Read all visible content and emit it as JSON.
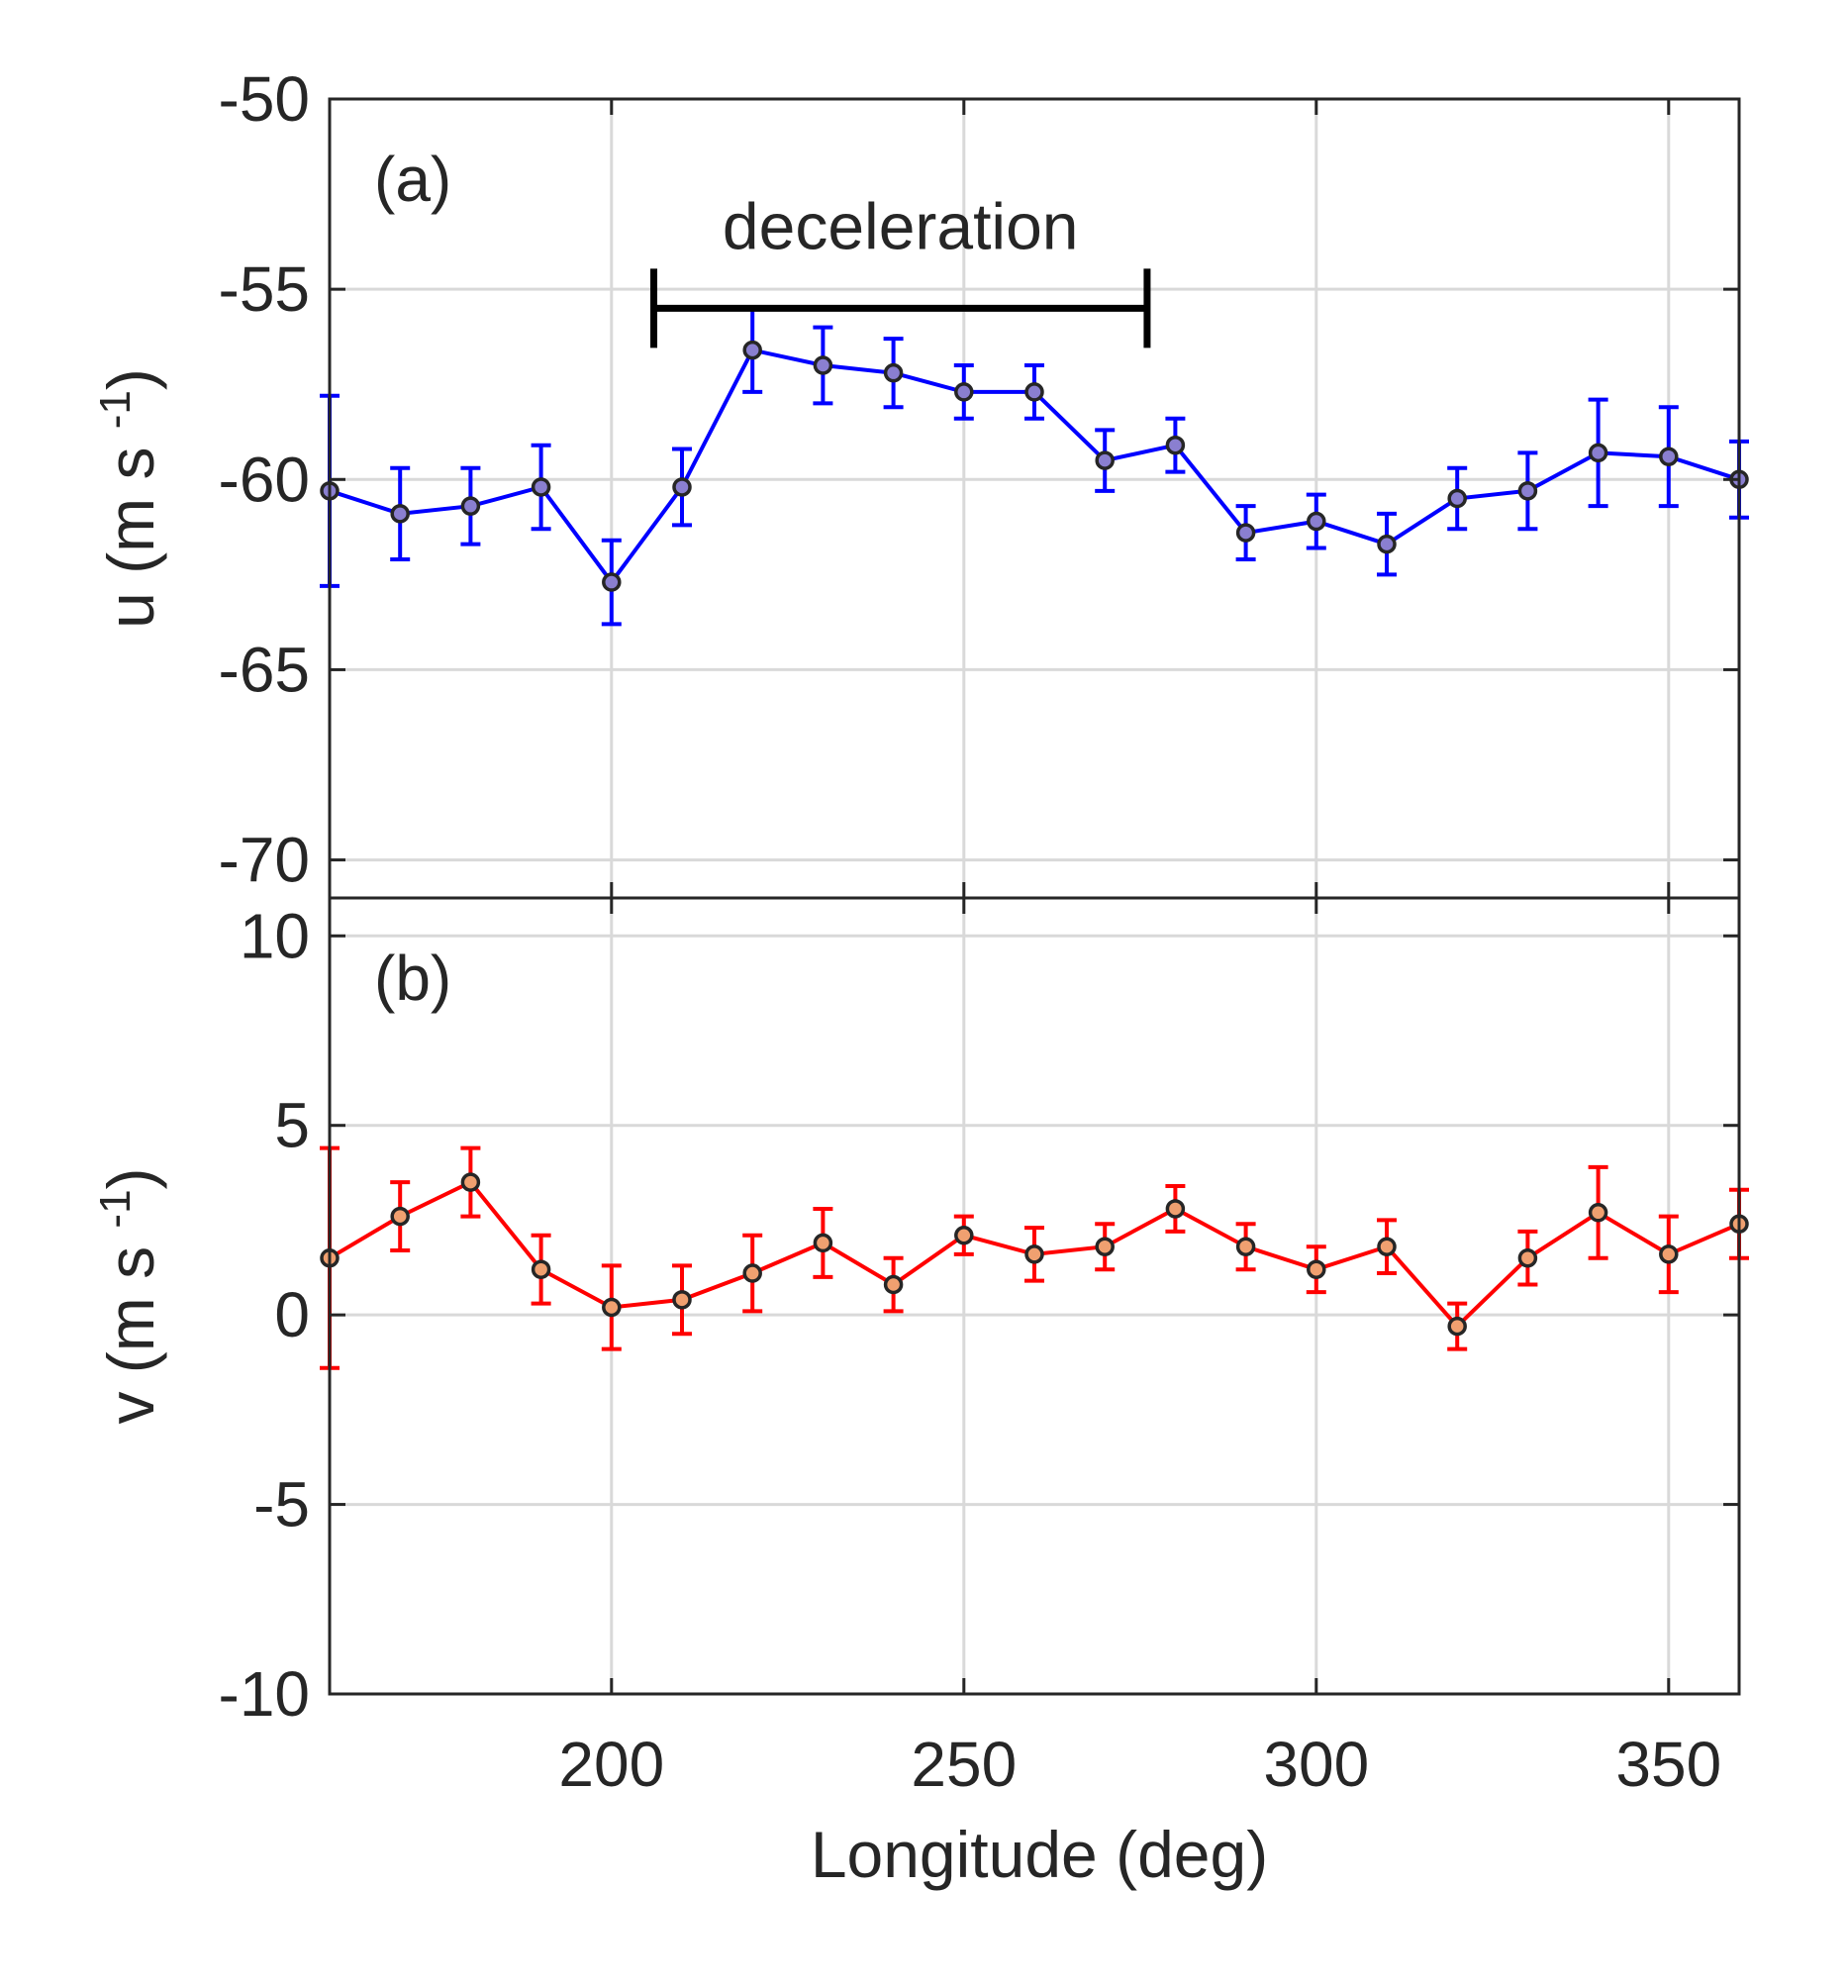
{
  "chart_data": [
    {
      "type": "line",
      "panel_label": "(a)",
      "ylabel": "u (m s",
      "ylabel_sup": "-1",
      "ylabel_close": ")",
      "ylim": [
        -71,
        -50
      ],
      "yticks": [
        -50,
        -55,
        -60,
        -65,
        -70
      ],
      "xlim": [
        160,
        360
      ],
      "color": "#0000ff",
      "series": [
        {
          "name": "u",
          "x": [
            160,
            170,
            180,
            190,
            200,
            210,
            220,
            230,
            240,
            250,
            260,
            270,
            280,
            290,
            300,
            310,
            320,
            330,
            340,
            350,
            360
          ],
          "values": [
            -60.3,
            -60.9,
            -60.7,
            -60.2,
            -62.7,
            -60.2,
            -56.6,
            -57.0,
            -57.2,
            -57.7,
            -57.7,
            -59.5,
            -59.1,
            -61.4,
            -61.1,
            -61.7,
            -60.5,
            -60.3,
            -59.3,
            -59.4,
            -60.0
          ],
          "errors": [
            2.5,
            1.2,
            1.0,
            1.1,
            1.1,
            1.0,
            1.1,
            1.0,
            0.9,
            0.7,
            0.7,
            0.8,
            0.7,
            0.7,
            0.7,
            0.8,
            0.8,
            1.0,
            1.4,
            1.3,
            1.0
          ]
        }
      ],
      "annotation": {
        "label": "deceleration",
        "x_start": 206,
        "x_end": 276,
        "y": -55.5
      }
    },
    {
      "type": "line",
      "panel_label": "(b)",
      "ylabel": "v (m s",
      "ylabel_sup": "-1",
      "ylabel_close": ")",
      "ylim": [
        -10,
        11
      ],
      "yticks": [
        10,
        5,
        0,
        -5,
        -10
      ],
      "xlim": [
        160,
        360
      ],
      "xticks": [
        200,
        250,
        300,
        350
      ],
      "xlabel": "Longitude (deg)",
      "color": "#ff0000",
      "series": [
        {
          "name": "v",
          "x": [
            160,
            170,
            180,
            190,
            200,
            210,
            220,
            230,
            240,
            250,
            260,
            270,
            280,
            290,
            300,
            310,
            320,
            330,
            340,
            350,
            360
          ],
          "values": [
            1.5,
            2.6,
            3.5,
            1.2,
            0.2,
            0.4,
            1.1,
            1.9,
            0.8,
            2.1,
            1.6,
            1.8,
            2.8,
            1.8,
            1.2,
            1.8,
            -0.3,
            1.5,
            2.7,
            1.6,
            2.4
          ],
          "errors": [
            2.9,
            0.9,
            0.9,
            0.9,
            1.1,
            0.9,
            1.0,
            0.9,
            0.7,
            0.5,
            0.7,
            0.6,
            0.6,
            0.6,
            0.6,
            0.7,
            0.6,
            0.7,
            1.2,
            1.0,
            0.9
          ]
        }
      ]
    }
  ]
}
